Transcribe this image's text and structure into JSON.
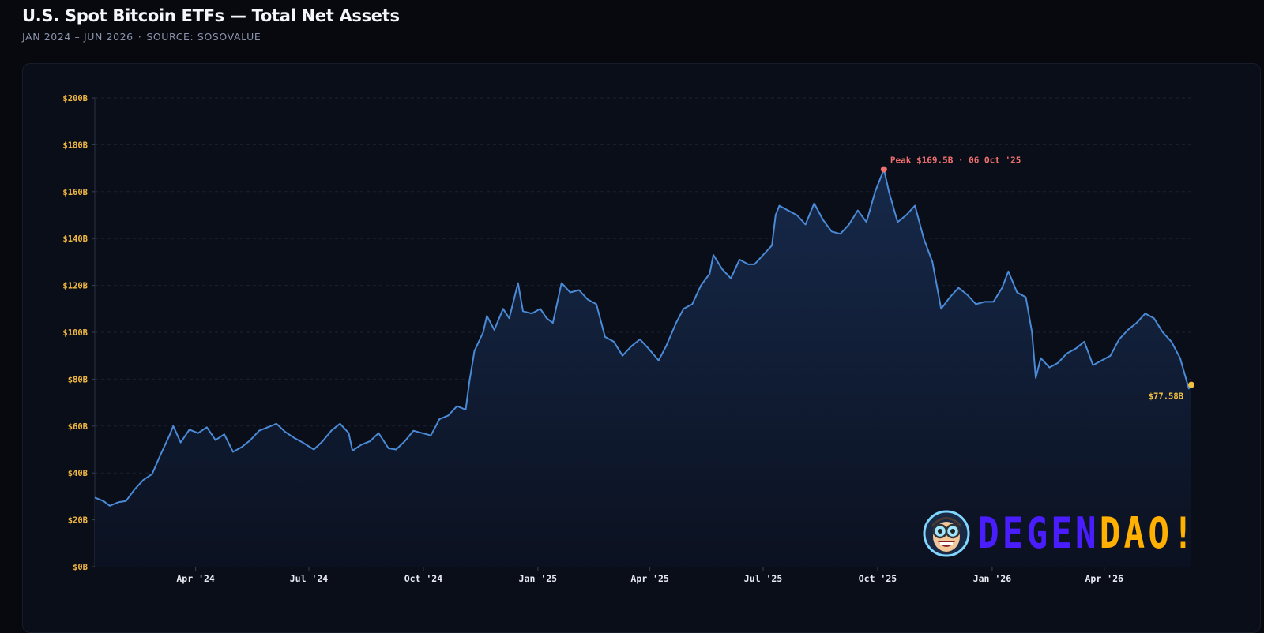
{
  "header": {
    "title": "U.S. Spot Bitcoin ETFs — Total Net Assets",
    "subtitle_range": "JAN 2024 – JUN 2026",
    "subtitle_sep": "·",
    "subtitle_source": "SOURCE: SOSOVALUE"
  },
  "colors": {
    "line": "#4a8ad6",
    "area_top": "#16294a",
    "area_bottom": "#0b1120",
    "tick_y": "#f0b840",
    "peak": "#f07070",
    "last": "#f0c040"
  },
  "chart_data": {
    "type": "area",
    "title": "U.S. Spot Bitcoin ETFs — Total Net Assets",
    "xlabel": "",
    "ylabel": "",
    "ylim": [
      0,
      200
    ],
    "y_unit": "B USD",
    "grid": true,
    "x_range": [
      "2024-01-11",
      "2026-06-10"
    ],
    "y_ticks": [
      "$0B",
      "$20B",
      "$40B",
      "$60B",
      "$80B",
      "$100B",
      "$120B",
      "$140B",
      "$160B",
      "$180B",
      "$200B"
    ],
    "x_ticks": [
      {
        "label": "Apr '24",
        "date": "2024-04-01"
      },
      {
        "label": "Jul '24",
        "date": "2024-07-01"
      },
      {
        "label": "Oct '24",
        "date": "2024-10-01"
      },
      {
        "label": "Jan '25",
        "date": "2025-01-01"
      },
      {
        "label": "Apr '25",
        "date": "2025-04-01"
      },
      {
        "label": "Jul '25",
        "date": "2025-07-01"
      },
      {
        "label": "Oct '25",
        "date": "2025-10-01"
      },
      {
        "label": "Jan '26",
        "date": "2026-01-01"
      },
      {
        "label": "Apr '26",
        "date": "2026-04-01"
      }
    ],
    "series": [
      {
        "values": [
          [
            "2024-01-11",
            29.5
          ],
          [
            "2024-01-18",
            28.0
          ],
          [
            "2024-01-23",
            26.0
          ],
          [
            "2024-01-30",
            27.5
          ],
          [
            "2024-02-05",
            28.0
          ],
          [
            "2024-02-12",
            33.0
          ],
          [
            "2024-02-19",
            37.0
          ],
          [
            "2024-02-26",
            39.5
          ],
          [
            "2024-03-04",
            48.0
          ],
          [
            "2024-03-11",
            56.0
          ],
          [
            "2024-03-14",
            60.0
          ],
          [
            "2024-03-20",
            53.0
          ],
          [
            "2024-03-27",
            58.5
          ],
          [
            "2024-04-03",
            57.0
          ],
          [
            "2024-04-10",
            59.5
          ],
          [
            "2024-04-17",
            54.0
          ],
          [
            "2024-04-24",
            56.5
          ],
          [
            "2024-05-01",
            49.0
          ],
          [
            "2024-05-08",
            51.0
          ],
          [
            "2024-05-15",
            54.0
          ],
          [
            "2024-05-22",
            58.0
          ],
          [
            "2024-05-29",
            59.5
          ],
          [
            "2024-06-05",
            61.0
          ],
          [
            "2024-06-12",
            57.5
          ],
          [
            "2024-06-19",
            55.0
          ],
          [
            "2024-06-26",
            53.0
          ],
          [
            "2024-07-05",
            50.0
          ],
          [
            "2024-07-12",
            53.5
          ],
          [
            "2024-07-19",
            58.0
          ],
          [
            "2024-07-26",
            61.0
          ],
          [
            "2024-08-02",
            57.0
          ],
          [
            "2024-08-05",
            49.5
          ],
          [
            "2024-08-12",
            52.0
          ],
          [
            "2024-08-19",
            53.5
          ],
          [
            "2024-08-26",
            57.0
          ],
          [
            "2024-09-03",
            50.5
          ],
          [
            "2024-09-09",
            50.0
          ],
          [
            "2024-09-16",
            53.5
          ],
          [
            "2024-09-23",
            58.0
          ],
          [
            "2024-09-30",
            57.0
          ],
          [
            "2024-10-07",
            56.0
          ],
          [
            "2024-10-14",
            63.0
          ],
          [
            "2024-10-21",
            64.5
          ],
          [
            "2024-10-28",
            68.5
          ],
          [
            "2024-11-04",
            67.0
          ],
          [
            "2024-11-07",
            79.0
          ],
          [
            "2024-11-11",
            92.0
          ],
          [
            "2024-11-18",
            100.0
          ],
          [
            "2024-11-21",
            107.0
          ],
          [
            "2024-11-27",
            101.0
          ],
          [
            "2024-12-04",
            110.0
          ],
          [
            "2024-12-09",
            106.0
          ],
          [
            "2024-12-16",
            121.0
          ],
          [
            "2024-12-20",
            109.0
          ],
          [
            "2024-12-27",
            108.0
          ],
          [
            "2025-01-03",
            110.0
          ],
          [
            "2025-01-08",
            106.0
          ],
          [
            "2025-01-13",
            104.0
          ],
          [
            "2025-01-20",
            121.0
          ],
          [
            "2025-01-27",
            117.0
          ],
          [
            "2025-02-03",
            118.0
          ],
          [
            "2025-02-10",
            114.0
          ],
          [
            "2025-02-17",
            112.0
          ],
          [
            "2025-02-24",
            98.0
          ],
          [
            "2025-03-03",
            96.0
          ],
          [
            "2025-03-10",
            90.0
          ],
          [
            "2025-03-17",
            94.0
          ],
          [
            "2025-03-24",
            97.0
          ],
          [
            "2025-03-31",
            93.0
          ],
          [
            "2025-04-08",
            88.0
          ],
          [
            "2025-04-14",
            94.0
          ],
          [
            "2025-04-22",
            104.0
          ],
          [
            "2025-04-28",
            110.0
          ],
          [
            "2025-05-05",
            112.0
          ],
          [
            "2025-05-12",
            120.0
          ],
          [
            "2025-05-19",
            125.0
          ],
          [
            "2025-05-22",
            133.0
          ],
          [
            "2025-05-29",
            127.0
          ],
          [
            "2025-06-05",
            123.0
          ],
          [
            "2025-06-12",
            131.0
          ],
          [
            "2025-06-19",
            129.0
          ],
          [
            "2025-06-24",
            129.0
          ],
          [
            "2025-07-01",
            133.0
          ],
          [
            "2025-07-08",
            137.0
          ],
          [
            "2025-07-11",
            150.0
          ],
          [
            "2025-07-14",
            154.0
          ],
          [
            "2025-07-21",
            152.0
          ],
          [
            "2025-07-28",
            150.0
          ],
          [
            "2025-08-04",
            146.0
          ],
          [
            "2025-08-11",
            155.0
          ],
          [
            "2025-08-18",
            148.0
          ],
          [
            "2025-08-25",
            143.0
          ],
          [
            "2025-09-01",
            142.0
          ],
          [
            "2025-09-08",
            146.0
          ],
          [
            "2025-09-15",
            152.0
          ],
          [
            "2025-09-22",
            147.0
          ],
          [
            "2025-09-29",
            160.0
          ],
          [
            "2025-10-06",
            169.5
          ],
          [
            "2025-10-10",
            160.0
          ],
          [
            "2025-10-17",
            147.0
          ],
          [
            "2025-10-24",
            150.0
          ],
          [
            "2025-10-31",
            154.0
          ],
          [
            "2025-11-07",
            140.0
          ],
          [
            "2025-11-14",
            130.0
          ],
          [
            "2025-11-21",
            110.0
          ],
          [
            "2025-11-28",
            115.0
          ],
          [
            "2025-12-05",
            119.0
          ],
          [
            "2025-12-12",
            116.0
          ],
          [
            "2025-12-19",
            112.0
          ],
          [
            "2025-12-26",
            113.0
          ],
          [
            "2026-01-02",
            113.0
          ],
          [
            "2026-01-09",
            119.0
          ],
          [
            "2026-01-14",
            126.0
          ],
          [
            "2026-01-21",
            117.0
          ],
          [
            "2026-01-28",
            115.0
          ],
          [
            "2026-02-02",
            100.0
          ],
          [
            "2026-02-05",
            80.5
          ],
          [
            "2026-02-09",
            89.0
          ],
          [
            "2026-02-16",
            85.0
          ],
          [
            "2026-02-23",
            87.0
          ],
          [
            "2026-03-02",
            91.0
          ],
          [
            "2026-03-09",
            93.0
          ],
          [
            "2026-03-16",
            96.0
          ],
          [
            "2026-03-23",
            86.0
          ],
          [
            "2026-03-30",
            88.0
          ],
          [
            "2026-04-06",
            90.0
          ],
          [
            "2026-04-13",
            97.0
          ],
          [
            "2026-04-20",
            101.0
          ],
          [
            "2026-04-27",
            104.0
          ],
          [
            "2026-05-04",
            108.0
          ],
          [
            "2026-05-11",
            106.0
          ],
          [
            "2026-05-18",
            100.0
          ],
          [
            "2026-05-25",
            96.0
          ],
          [
            "2026-06-01",
            89.0
          ],
          [
            "2026-06-08",
            76.0
          ],
          [
            "2026-06-10",
            77.58
          ]
        ]
      }
    ],
    "annotations": {
      "peak": {
        "label": "Peak $169.5B · 06 Oct '25",
        "date": "2025-10-06",
        "value": 169.5
      },
      "last": {
        "label": "$77.58B",
        "date": "2026-06-10",
        "value": 77.58
      }
    }
  },
  "logo": {
    "text_part1": "DEGEN",
    "text_part2": "DAO!",
    "mascot": "mascot-face-icon"
  }
}
